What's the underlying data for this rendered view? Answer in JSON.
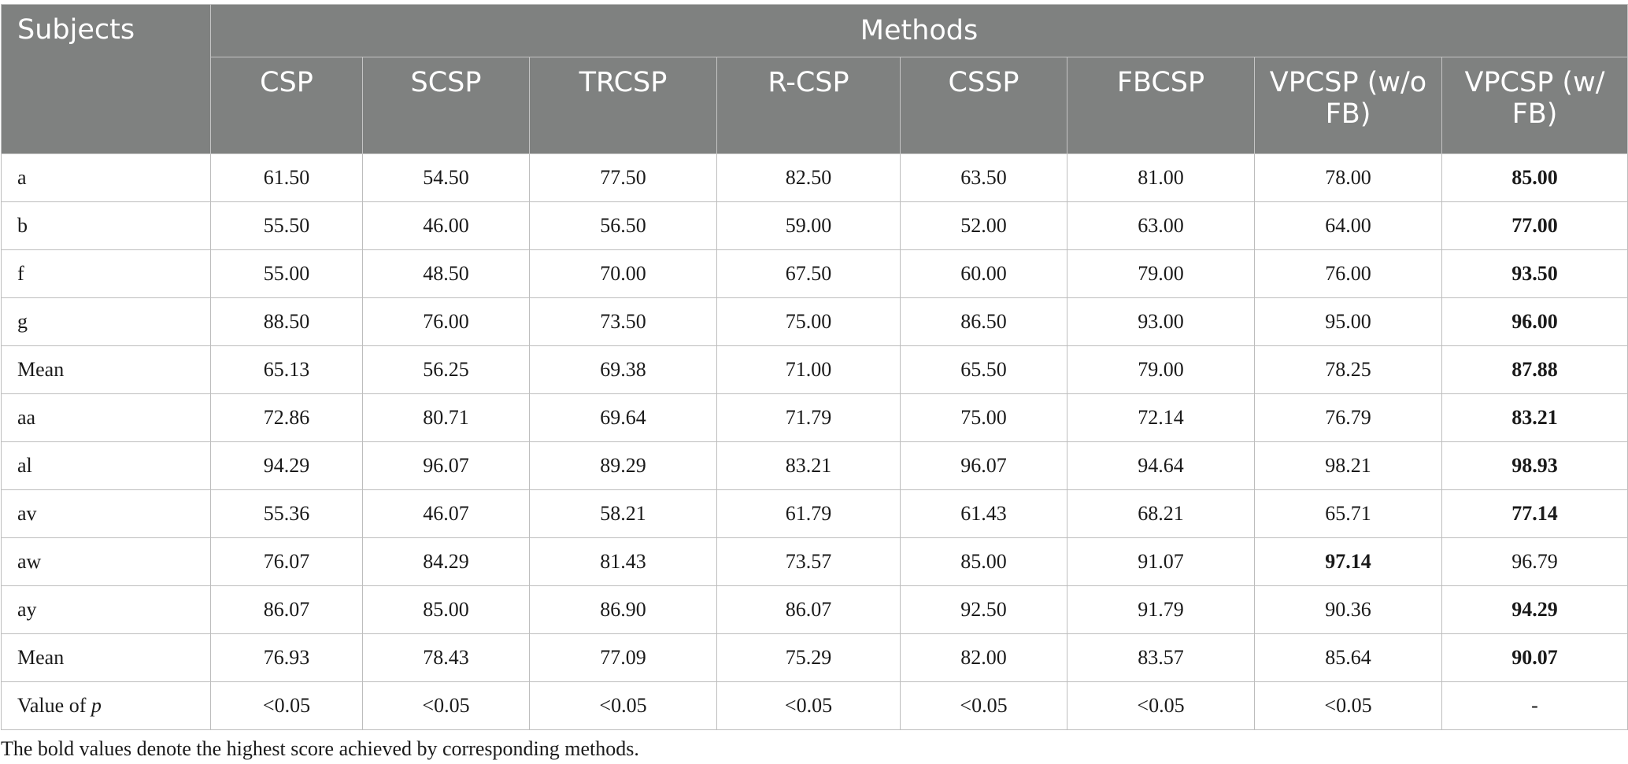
{
  "table": {
    "subjects_header": "Subjects",
    "methods_header": "Methods",
    "columns": [
      "CSP",
      "SCSP",
      "TRCSP",
      "R-CSP",
      "CSSP",
      "FBCSP",
      "VPCSP (w/o FB)",
      "VPCSP (w/ FB)"
    ],
    "rows": [
      {
        "label": "a",
        "values": [
          "61.50",
          "54.50",
          "77.50",
          "82.50",
          "63.50",
          "81.00",
          "78.00",
          "85.00"
        ],
        "bold_index": 7
      },
      {
        "label": "b",
        "values": [
          "55.50",
          "46.00",
          "56.50",
          "59.00",
          "52.00",
          "63.00",
          "64.00",
          "77.00"
        ],
        "bold_index": 7
      },
      {
        "label": "f",
        "values": [
          "55.00",
          "48.50",
          "70.00",
          "67.50",
          "60.00",
          "79.00",
          "76.00",
          "93.50"
        ],
        "bold_index": 7
      },
      {
        "label": "g",
        "values": [
          "88.50",
          "76.00",
          "73.50",
          "75.00",
          "86.50",
          "93.00",
          "95.00",
          "96.00"
        ],
        "bold_index": 7
      },
      {
        "label": "Mean",
        "values": [
          "65.13",
          "56.25",
          "69.38",
          "71.00",
          "65.50",
          "79.00",
          "78.25",
          "87.88"
        ],
        "bold_index": 7
      },
      {
        "label": "aa",
        "values": [
          "72.86",
          "80.71",
          "69.64",
          "71.79",
          "75.00",
          "72.14",
          "76.79",
          "83.21"
        ],
        "bold_index": 7
      },
      {
        "label": "al",
        "values": [
          "94.29",
          "96.07",
          "89.29",
          "83.21",
          "96.07",
          "94.64",
          "98.21",
          "98.93"
        ],
        "bold_index": 7
      },
      {
        "label": "av",
        "values": [
          "55.36",
          "46.07",
          "58.21",
          "61.79",
          "61.43",
          "68.21",
          "65.71",
          "77.14"
        ],
        "bold_index": 7
      },
      {
        "label": "aw",
        "values": [
          "76.07",
          "84.29",
          "81.43",
          "73.57",
          "85.00",
          "91.07",
          "97.14",
          "96.79"
        ],
        "bold_index": 6
      },
      {
        "label": "ay",
        "values": [
          "86.07",
          "85.00",
          "86.90",
          "86.07",
          "92.50",
          "91.79",
          "90.36",
          "94.29"
        ],
        "bold_index": 7
      },
      {
        "label": "Mean",
        "values": [
          "76.93",
          "78.43",
          "77.09",
          "75.29",
          "82.00",
          "83.57",
          "85.64",
          "90.07"
        ],
        "bold_index": 7
      },
      {
        "label": "Value of p",
        "label_prefix": "Value of ",
        "label_italic": "p",
        "values": [
          "<0.05",
          "<0.05",
          "<0.05",
          "<0.05",
          "<0.05",
          "<0.05",
          "<0.05",
          "-"
        ],
        "bold_index": -1
      }
    ]
  },
  "footnote": "The bold values denote the highest score achieved by corresponding methods.",
  "colors": {
    "header_bg": "#7f8180",
    "header_text": "#ffffff",
    "border": "#bdbdbd"
  }
}
